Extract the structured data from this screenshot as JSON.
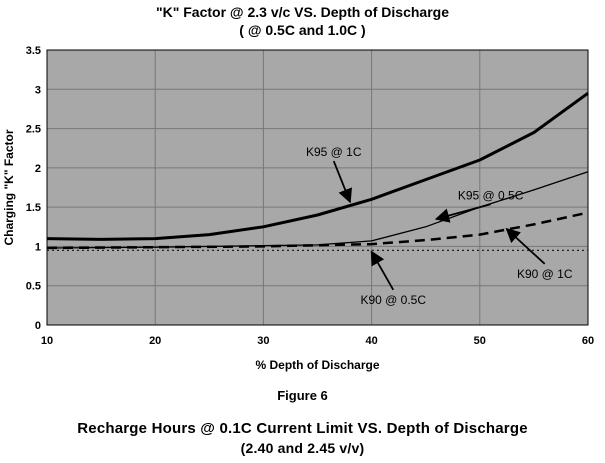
{
  "chart_data": {
    "type": "line",
    "title": "\"K\" Factor @ 2.3 v/c VS. Depth of Discharge",
    "subtitle": "( @ 0.5C and 1.0C )",
    "xlabel": "% Depth of Discharge",
    "ylabel": "Charging \"K\" Factor",
    "xlim": [
      10,
      60
    ],
    "ylim": [
      0,
      3.5
    ],
    "xticks": [
      10,
      20,
      30,
      40,
      50,
      60
    ],
    "yticks": [
      0,
      0.5,
      1,
      1.5,
      2,
      2.5,
      3,
      3.5
    ],
    "ytick_labels": [
      "0",
      "0.5",
      "1",
      "1.5",
      "2",
      "2.5",
      "3",
      "3.5"
    ],
    "grid": true,
    "background": "#a8a8a8",
    "series": [
      {
        "name": "K95 @ 1C",
        "style": "solid-thick",
        "x": [
          10,
          15,
          20,
          25,
          30,
          35,
          40,
          45,
          50,
          55,
          60
        ],
        "y": [
          1.1,
          1.09,
          1.1,
          1.15,
          1.25,
          1.4,
          1.6,
          1.85,
          2.1,
          2.45,
          2.95
        ]
      },
      {
        "name": "K95 @ 0.5C",
        "style": "solid-thin",
        "x": [
          10,
          20,
          30,
          35,
          40,
          45,
          50,
          55,
          60
        ],
        "y": [
          0.98,
          0.99,
          1.01,
          1.02,
          1.07,
          1.25,
          1.5,
          1.72,
          1.95
        ]
      },
      {
        "name": "K90 @ 1C",
        "style": "dashed",
        "x": [
          10,
          20,
          30,
          40,
          45,
          50,
          55,
          60
        ],
        "y": [
          0.98,
          0.99,
          1.0,
          1.03,
          1.08,
          1.15,
          1.28,
          1.43
        ]
      },
      {
        "name": "K90 @ 0.5C",
        "style": "dotted",
        "x": [
          10,
          20,
          30,
          40,
          50,
          60
        ],
        "y": [
          0.95,
          0.95,
          0.95,
          0.95,
          0.95,
          0.95
        ]
      }
    ],
    "annotations": [
      {
        "text": "K95 @ 1C",
        "x": 36.5,
        "y": 2.15,
        "arrow_to": [
          38,
          1.57
        ]
      },
      {
        "text": "K95 @ 0.5C",
        "x": 51,
        "y": 1.6,
        "arrow_to": [
          46,
          1.35
        ]
      },
      {
        "text": "K90 @ 1C",
        "x": 56,
        "y": 0.6,
        "arrow_to": [
          52.5,
          1.22
        ]
      },
      {
        "text": "K90 @ 0.5C",
        "x": 42,
        "y": 0.27,
        "arrow_to": [
          40,
          0.93
        ]
      }
    ]
  },
  "page": {
    "figure_caption": "Figure 6",
    "next_title_line1": "Recharge Hours @ 0.1C Current Limit VS. Depth of Discharge",
    "next_title_line2": "(2.40 and 2.45 v/v)"
  }
}
